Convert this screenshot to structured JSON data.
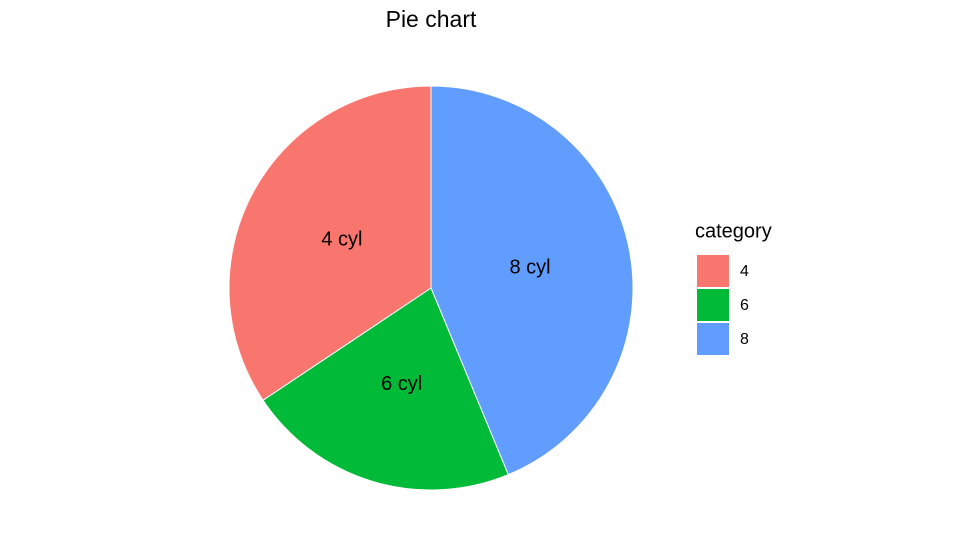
{
  "chart_data": {
    "type": "pie",
    "title": "Pie chart",
    "legend_title": "category",
    "categories": [
      "4",
      "6",
      "8"
    ],
    "labels": [
      "4 cyl",
      "6 cyl",
      "8 cyl"
    ],
    "values": [
      11,
      7,
      14
    ],
    "colors": [
      "#F8766D",
      "#00BA38",
      "#619CFF"
    ],
    "legend": "right"
  }
}
